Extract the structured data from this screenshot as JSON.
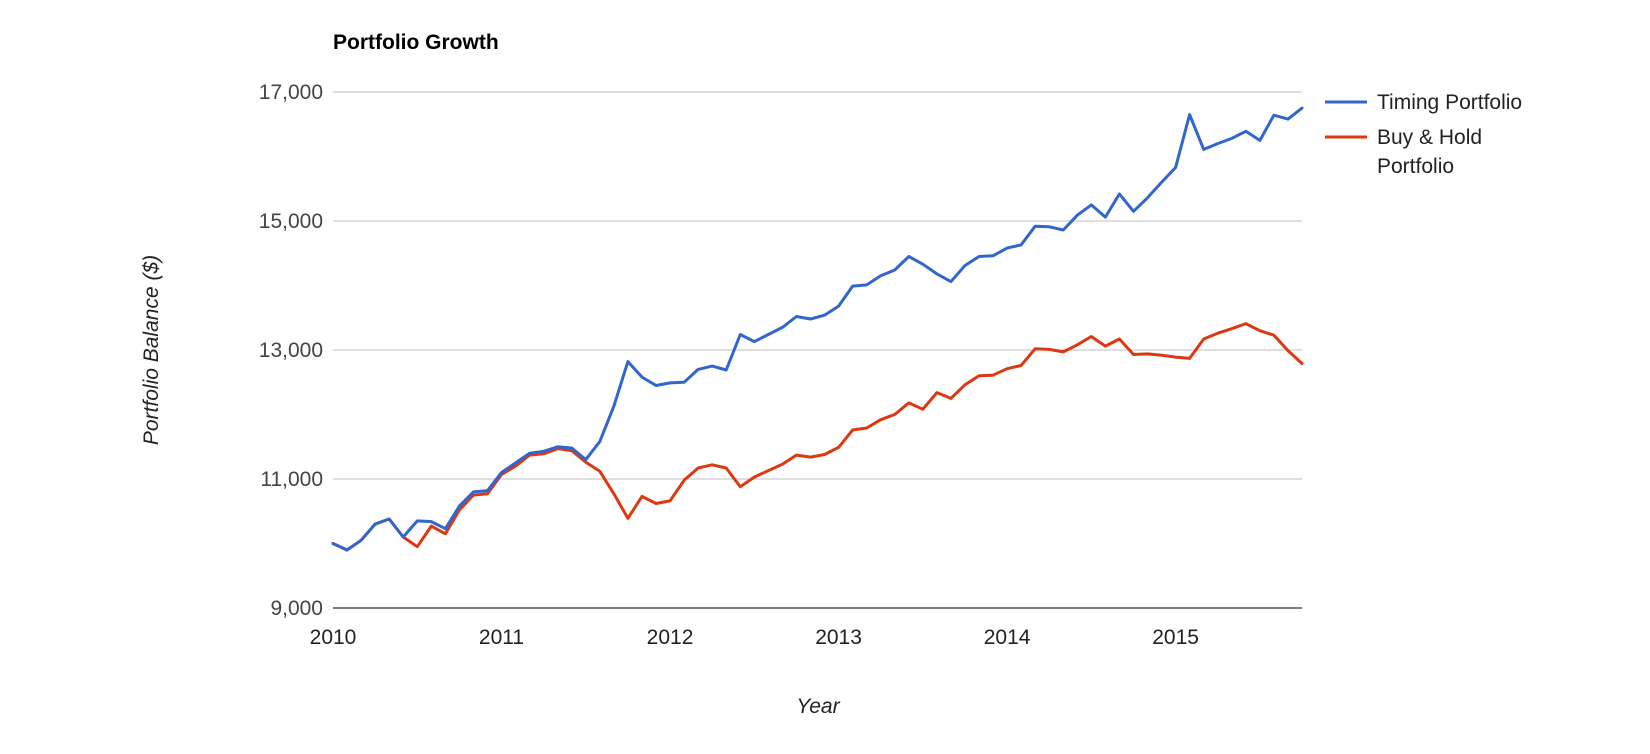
{
  "chart_data": {
    "type": "line",
    "title": "Portfolio Growth",
    "xlabel": "Year",
    "ylabel": "Portfolio Balance ($)",
    "xlim": [
      2010.0,
      2015.75
    ],
    "ylim": [
      9000,
      17000
    ],
    "x_ticks": [
      {
        "value": 2010,
        "label": "2010"
      },
      {
        "value": 2011,
        "label": "2011"
      },
      {
        "value": 2012,
        "label": "2012"
      },
      {
        "value": 2013,
        "label": "2013"
      },
      {
        "value": 2014,
        "label": "2014"
      },
      {
        "value": 2015,
        "label": "2015"
      }
    ],
    "y_ticks": [
      {
        "value": 9000,
        "label": "9,000"
      },
      {
        "value": 11000,
        "label": "11,000"
      },
      {
        "value": 13000,
        "label": "13,000"
      },
      {
        "value": 15000,
        "label": "15,000"
      },
      {
        "value": 17000,
        "label": "17,000"
      }
    ],
    "grid": true,
    "legend_position": "right",
    "x": [
      2010.0,
      2010.0833,
      2010.1667,
      2010.25,
      2010.3333,
      2010.4167,
      2010.5,
      2010.5833,
      2010.6667,
      2010.75,
      2010.8333,
      2010.9167,
      2011.0,
      2011.0833,
      2011.1667,
      2011.25,
      2011.3333,
      2011.4167,
      2011.5,
      2011.5833,
      2011.6667,
      2011.75,
      2011.8333,
      2011.9167,
      2012.0,
      2012.0833,
      2012.1667,
      2012.25,
      2012.3333,
      2012.4167,
      2012.5,
      2012.5833,
      2012.6667,
      2012.75,
      2012.8333,
      2012.9167,
      2013.0,
      2013.0833,
      2013.1667,
      2013.25,
      2013.3333,
      2013.4167,
      2013.5,
      2013.5833,
      2013.6667,
      2013.75,
      2013.8333,
      2013.9167,
      2014.0,
      2014.0833,
      2014.1667,
      2014.25,
      2014.3333,
      2014.4167,
      2014.5,
      2014.5833,
      2014.6667,
      2014.75,
      2014.8333,
      2014.9167,
      2015.0,
      2015.0833,
      2015.1667,
      2015.25,
      2015.3333,
      2015.4167,
      2015.5,
      2015.5833,
      2015.6667,
      2015.75
    ],
    "series": [
      {
        "name": "Timing Portfolio",
        "color": "#3366cc",
        "values": [
          10000,
          9900,
          10050,
          10300,
          10380,
          10100,
          10350,
          10340,
          10230,
          10580,
          10800,
          10820,
          11100,
          11250,
          11400,
          11430,
          11500,
          11480,
          11300,
          11580,
          12130,
          12820,
          12580,
          12450,
          12490,
          12500,
          12700,
          12750,
          12690,
          13240,
          13130,
          13240,
          13350,
          13520,
          13480,
          13540,
          13680,
          13990,
          14010,
          14150,
          14240,
          14450,
          14330,
          14180,
          14060,
          14310,
          14450,
          14460,
          14580,
          14630,
          14920,
          14910,
          14860,
          15090,
          15250,
          15060,
          15420,
          15150,
          15360,
          15600,
          15830,
          16650,
          16110,
          16200,
          16280,
          16390,
          16250,
          16640,
          16580,
          16750
        ]
      },
      {
        "name": "Buy & Hold Portfolio",
        "color": "#dc3912",
        "values": [
          10000,
          9900,
          10050,
          10300,
          10380,
          10100,
          9950,
          10270,
          10150,
          10520,
          10750,
          10770,
          11070,
          11200,
          11370,
          11390,
          11470,
          11440,
          11260,
          11120,
          10770,
          10390,
          10730,
          10620,
          10660,
          10980,
          11170,
          11220,
          11170,
          10880,
          11030,
          11130,
          11230,
          11370,
          11340,
          11380,
          11490,
          11760,
          11790,
          11920,
          12000,
          12180,
          12080,
          12340,
          12250,
          12460,
          12600,
          12610,
          12710,
          12760,
          13020,
          13010,
          12970,
          13080,
          13210,
          13060,
          13170,
          12930,
          12940,
          12920,
          12890,
          12870,
          13170,
          13260,
          13330,
          13410,
          13300,
          13230,
          12990,
          12790
        ]
      }
    ]
  }
}
